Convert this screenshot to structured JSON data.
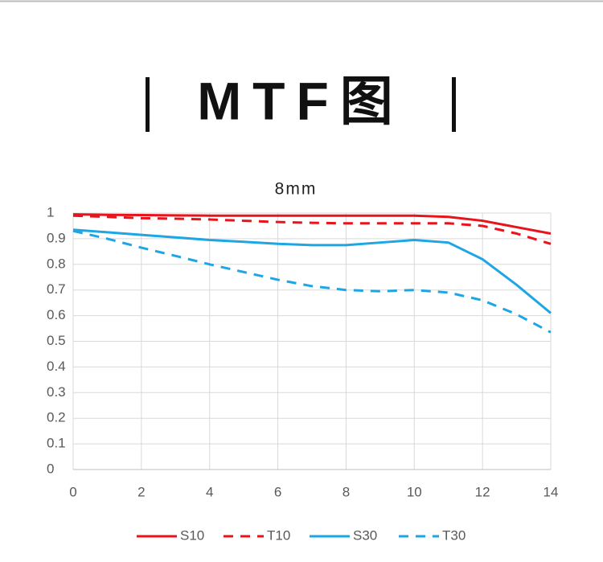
{
  "heading": "MTF图",
  "chart_data": {
    "type": "line",
    "title": "8mm",
    "x": [
      0,
      1,
      2,
      3,
      4,
      5,
      6,
      7,
      8,
      9,
      10,
      11,
      12,
      13,
      14
    ],
    "series": [
      {
        "name": "S10",
        "color": "#e8141c",
        "dashed": false,
        "values": [
          0.995,
          0.993,
          0.992,
          0.991,
          0.99,
          0.99,
          0.99,
          0.99,
          0.99,
          0.99,
          0.99,
          0.985,
          0.97,
          0.945,
          0.92
        ]
      },
      {
        "name": "T10",
        "color": "#e8141c",
        "dashed": true,
        "values": [
          0.99,
          0.985,
          0.98,
          0.978,
          0.975,
          0.97,
          0.965,
          0.962,
          0.96,
          0.96,
          0.96,
          0.96,
          0.95,
          0.92,
          0.88
        ]
      },
      {
        "name": "S30",
        "color": "#1ea6e4",
        "dashed": false,
        "values": [
          0.935,
          0.925,
          0.915,
          0.905,
          0.895,
          0.888,
          0.88,
          0.875,
          0.875,
          0.885,
          0.895,
          0.885,
          0.82,
          0.72,
          0.61
        ]
      },
      {
        "name": "T30",
        "color": "#1ea6e4",
        "dashed": true,
        "values": [
          0.93,
          0.9,
          0.865,
          0.833,
          0.8,
          0.77,
          0.74,
          0.715,
          0.7,
          0.695,
          0.7,
          0.69,
          0.66,
          0.605,
          0.535
        ]
      }
    ],
    "xlim": [
      0,
      14
    ],
    "xticks": [
      0,
      2,
      4,
      6,
      8,
      10,
      12,
      14
    ],
    "ylim": [
      0,
      1
    ],
    "yticks": [
      0,
      0.1,
      0.2,
      0.3,
      0.4,
      0.5,
      0.6,
      0.7,
      0.8,
      0.9,
      1
    ],
    "grid": true,
    "legend": "bottom"
  }
}
